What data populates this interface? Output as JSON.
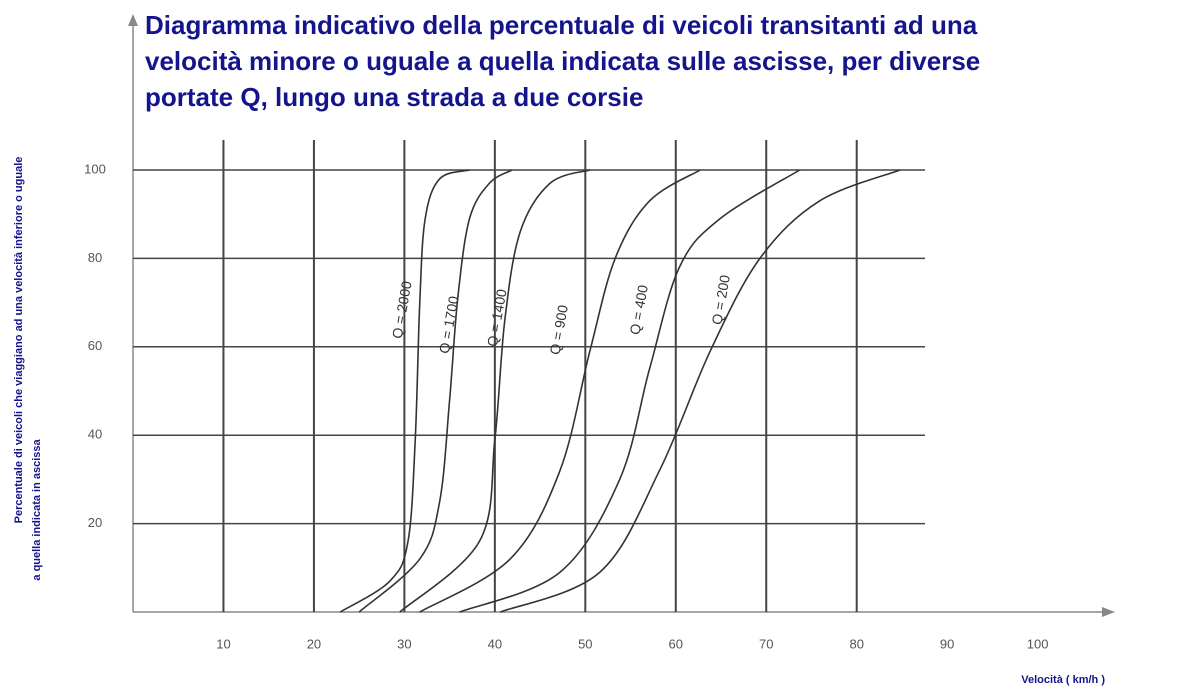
{
  "chart_data": {
    "type": "line",
    "title": [
      "Diagramma indicativo della percentuale di veicoli transitanti ad una",
      "velocità minore o uguale a quella indicata sulle ascisse, per diverse",
      "portate Q, lungo una strada a due corsie"
    ],
    "y_label": [
      "Percentuale di veicoli che viaggiano ad una velocità inferiore o uguale",
      "a quella indicata in ascissa"
    ],
    "x_label": "Velocità ( km/h )",
    "xlim": [
      0,
      108
    ],
    "ylim": [
      0,
      100
    ],
    "xticks": [
      10,
      20,
      30,
      40,
      50,
      60,
      70,
      80,
      90,
      100
    ],
    "yticks": [
      20,
      40,
      60,
      80,
      100
    ],
    "grid": true,
    "series": [
      {
        "name": "Q = 2000",
        "color": "#333333",
        "x": [
          22.9,
          28.4,
          30.4,
          31.2,
          31.7,
          32.3,
          33.9,
          37.2
        ],
        "values": [
          0,
          7,
          16,
          39,
          70,
          89,
          98,
          100
        ]
      },
      {
        "name": "Q = 1700",
        "color": "#333333",
        "x": [
          25,
          31.7,
          33.9,
          35,
          35.9,
          37.2,
          39.4,
          41.9
        ],
        "values": [
          0,
          12,
          25,
          48,
          71,
          89,
          97,
          100
        ]
      },
      {
        "name": "Q = 1400",
        "color": "#333333",
        "x": [
          29.5,
          38.3,
          40,
          41.1,
          42.8,
          46.1,
          50.5
        ],
        "values": [
          0,
          16,
          39,
          66,
          86,
          97,
          100
        ]
      },
      {
        "name": "Q = 900",
        "color": "#333333",
        "x": [
          31.7,
          41.7,
          47.2,
          50.5,
          53.3,
          57.1,
          62.7
        ],
        "values": [
          0,
          12,
          32,
          59,
          80,
          93,
          100
        ]
      },
      {
        "name": "Q = 400",
        "color": "#333333",
        "x": [
          36.1,
          47.2,
          53.8,
          57.1,
          60.4,
          64.9,
          73.7
        ],
        "values": [
          0,
          9,
          30,
          55,
          78,
          89,
          100
        ]
      },
      {
        "name": "Q = 200",
        "color": "#333333",
        "x": [
          40.6,
          51.6,
          58.2,
          63.8,
          69.3,
          75.9,
          84.8
        ],
        "values": [
          0,
          9,
          32,
          59,
          80,
          93,
          100
        ]
      }
    ]
  }
}
